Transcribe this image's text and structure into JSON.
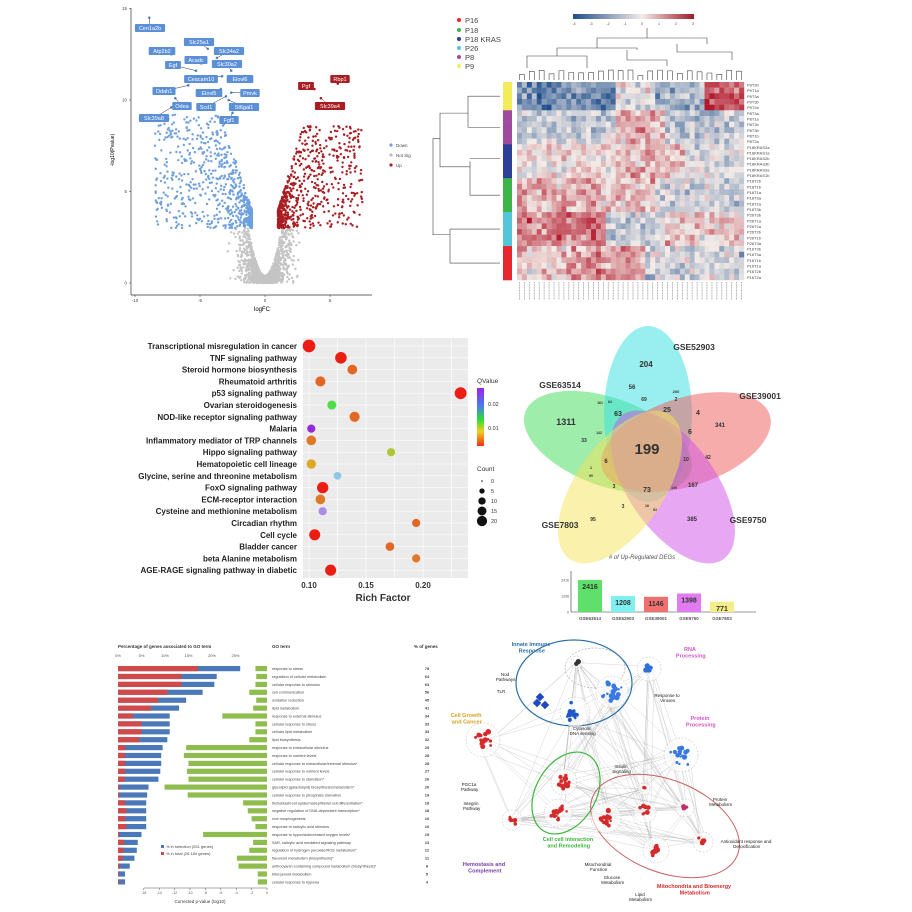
{
  "chart_data": [
    {
      "type": "scatter",
      "subtype": "volcano",
      "xlabel": "logFC",
      "ylabel": "-log10(Pvalue)",
      "xlim": [
        -10,
        8
      ],
      "ylim": [
        0,
        15
      ],
      "xticks": [
        "-10",
        "-5",
        "0",
        "5"
      ],
      "yticks": [
        "0",
        "5",
        "10",
        "15"
      ],
      "legend": [
        {
          "name": "Down",
          "color": "#6fa0dc"
        },
        {
          "name": "Not Sig",
          "color": "#bdbdbd"
        },
        {
          "name": "Up",
          "color": "#b22222"
        }
      ],
      "legend_position": "right",
      "labeled_genes": [
        {
          "name": "Cen1a2b",
          "x": -8.9,
          "y": 14.5,
          "group": "Down"
        },
        {
          "name": "Slc25a1",
          "x": -4.4,
          "y": 12.8,
          "group": "Down"
        },
        {
          "name": "Atp2b2",
          "x": -7.2,
          "y": 12.5,
          "group": "Down"
        },
        {
          "name": "Slc34a2",
          "x": -3.7,
          "y": 12.3,
          "group": "Down"
        },
        {
          "name": "Acadc",
          "x": -4.9,
          "y": 12.0,
          "group": "Down"
        },
        {
          "name": "Egf",
          "x": -5.3,
          "y": 11.6,
          "group": "Down"
        },
        {
          "name": "Slc30a2",
          "x": -2.6,
          "y": 11.6,
          "group": "Down"
        },
        {
          "name": "Ceacam10",
          "x": -3.3,
          "y": 11.3,
          "group": "Down"
        },
        {
          "name": "Elovl6",
          "x": -2.4,
          "y": 11.1,
          "group": "Down"
        },
        {
          "name": "Odah1",
          "x": -5.9,
          "y": 10.8,
          "group": "Down"
        },
        {
          "name": "Elovl5",
          "x": -3.4,
          "y": 10.6,
          "group": "Down"
        },
        {
          "name": "Pmvk",
          "x": -2.6,
          "y": 10.4,
          "group": "Down"
        },
        {
          "name": "Odea",
          "x": -6.9,
          "y": 10.1,
          "group": "Down"
        },
        {
          "name": "Scd1",
          "x": -3.0,
          "y": 10.2,
          "group": "Down"
        },
        {
          "name": "St6gal1",
          "x": -2.8,
          "y": 10.0,
          "group": "Down"
        },
        {
          "name": "Slc39a8",
          "x": -7.2,
          "y": 9.6,
          "group": "Down"
        },
        {
          "name": "Fgf1",
          "x": -2.5,
          "y": 9.3,
          "group": "Down"
        },
        {
          "name": "Pgf",
          "x": 3.8,
          "y": 10.6,
          "group": "Up"
        },
        {
          "name": "Rbp1",
          "x": 5.6,
          "y": 10.9,
          "group": "Up"
        },
        {
          "name": "Slc39a4",
          "x": 4.3,
          "y": 10.1,
          "group": "Up"
        }
      ]
    },
    {
      "type": "heatmap",
      "color_scale": {
        "min": -4,
        "max": 3,
        "ticks": [
          "-4",
          "-3",
          "-2",
          "-1",
          "0",
          "1",
          "2",
          "3"
        ],
        "low": "#1f4e8c",
        "mid": "#f3ece8",
        "high": "#b2182b"
      },
      "legend": [
        {
          "name": "P16",
          "color": "#e8262d"
        },
        {
          "name": "P18",
          "color": "#3db54a"
        },
        {
          "name": "P18 KRAS",
          "color": "#2e3f97"
        },
        {
          "name": "P26",
          "color": "#55c6d8"
        },
        {
          "name": "P8",
          "color": "#a04a9e"
        },
        {
          "name": "P9",
          "color": "#f3ec5a"
        }
      ],
      "legend_position": "top-left",
      "row_groups": [
        "P9",
        "P9",
        "P9",
        "P9",
        "P9",
        "P8",
        "P8",
        "P8",
        "P8",
        "P8",
        "P8",
        "P18 KRAS",
        "P18 KRAS",
        "P18 KRAS",
        "P18 KRAS",
        "P18 KRAS",
        "P18 KRAS",
        "P18",
        "P18",
        "P18",
        "P18",
        "P18",
        "P18",
        "P26",
        "P26",
        "P26",
        "P26",
        "P26",
        "P26",
        "P16",
        "P16",
        "P16",
        "P16",
        "P16",
        "P16"
      ],
      "row_labels": [
        "P9T2b",
        "P9T1a",
        "P9T3a",
        "P9T3b",
        "P9T2a",
        "P8T3a",
        "P8T1a",
        "P8T2b",
        "P8T3b",
        "P8T1b",
        "P8T2a",
        "P18KRAS2a",
        "P18KRAS1a",
        "P18KRAS2b",
        "P18KRAS3b",
        "P18KRAS3a",
        "P18KRAS1b",
        "P18T2b",
        "P18T1b",
        "P18T1a",
        "P18T3a",
        "P18T2a",
        "P18T3b",
        "P26T3b",
        "P26T1a",
        "P26T2a",
        "P26T2b",
        "P26T1b",
        "P26T3a",
        "P16T3b",
        "P16T3a",
        "P16T1b",
        "P16T1a",
        "P16T2b",
        "P16T2a"
      ]
    },
    {
      "type": "scatter",
      "subtype": "bubble",
      "xlabel": "Rich  Factor",
      "xlim": [
        0.095,
        0.237
      ],
      "xticks": [
        "0.10",
        "0.15",
        "0.20"
      ],
      "grid": true,
      "legend_position": "right",
      "color_legend": {
        "title": "QValue",
        "ticks": [
          "0.02",
          "0.01"
        ]
      },
      "size_legend": {
        "title": "Count",
        "ticks": [
          "0",
          "5",
          "10",
          "15",
          "20"
        ]
      },
      "points": [
        {
          "term": "Transcriptional misregulation in cancer",
          "rich": 0.1,
          "qvalue": 0.002,
          "count": 20
        },
        {
          "term": "TNF signaling pathway",
          "rich": 0.128,
          "qvalue": 0.003,
          "count": 16
        },
        {
          "term": "Steroid hormone biosynthesis",
          "rich": 0.138,
          "qvalue": 0.007,
          "count": 10
        },
        {
          "term": "Rheumatoid arthritis",
          "rich": 0.11,
          "qvalue": 0.007,
          "count": 11
        },
        {
          "term": "p53 signaling pathway",
          "rich": 0.233,
          "qvalue": 0.002,
          "count": 17
        },
        {
          "term": "Ovarian steroidogenesis",
          "rich": 0.12,
          "qvalue": 0.014,
          "count": 8
        },
        {
          "term": "NOD-like receptor signaling pathway",
          "rich": 0.14,
          "qvalue": 0.007,
          "count": 11
        },
        {
          "term": "Malaria",
          "rich": 0.102,
          "qvalue": 0.026,
          "count": 6
        },
        {
          "term": "Inflammatory mediator of TRP channels",
          "rich": 0.102,
          "qvalue": 0.008,
          "count": 10
        },
        {
          "term": "Hippo signaling pathway",
          "rich": 0.172,
          "qvalue": 0.012,
          "count": 6
        },
        {
          "term": "Hematopoietic cell lineage",
          "rich": 0.102,
          "qvalue": 0.01,
          "count": 9
        },
        {
          "term": "Glycine, serine and threonine metabolism",
          "rich": 0.125,
          "qvalue": 0.018,
          "count": 5
        },
        {
          "term": "FoxO signaling pathway",
          "rich": 0.112,
          "qvalue": 0.003,
          "count": 15
        },
        {
          "term": "ECM-receptor interaction",
          "rich": 0.11,
          "qvalue": 0.008,
          "count": 10
        },
        {
          "term": "Cysteine and methionine metabolism",
          "rich": 0.112,
          "qvalue": 0.022,
          "count": 6
        },
        {
          "term": "Circadian rhythm",
          "rich": 0.194,
          "qvalue": 0.007,
          "count": 6
        },
        {
          "term": "Cell cycle",
          "rich": 0.105,
          "qvalue": 0.003,
          "count": 14
        },
        {
          "term": "Bladder cancer",
          "rich": 0.171,
          "qvalue": 0.007,
          "count": 7
        },
        {
          "term": "beta Alanine metabolism",
          "rich": 0.194,
          "qvalue": 0.008,
          "count": 6
        },
        {
          "term": "AGE-RAGE signaling pathway in diabetic",
          "rich": 0.119,
          "qvalue": 0.003,
          "count": 14
        }
      ]
    },
    {
      "type": "venn",
      "sets": [
        {
          "name": "GSE63514",
          "color": "#3fdc55"
        },
        {
          "name": "GSE52903",
          "color": "#33e0e0"
        },
        {
          "name": "GSE39001",
          "color": "#f05a5a"
        },
        {
          "name": "GSE9750",
          "color": "#d050e8"
        },
        {
          "name": "GSE7803",
          "color": "#f5e35a"
        }
      ],
      "regions": [
        "204",
        "1311",
        "56",
        "69",
        "161",
        "64",
        "260",
        "2",
        "63",
        "25",
        "4",
        "341",
        "142",
        "33",
        "6",
        "199",
        "10",
        "42",
        "6",
        "1",
        "90",
        "3",
        "73",
        "149",
        "167",
        "3",
        "16",
        "63",
        "95",
        "385"
      ]
    },
    {
      "type": "bar",
      "title": "# of Up-Regulated DEGs",
      "categories": [
        "GSE63514",
        "GSE52903",
        "GSE39001",
        "GSE9750",
        "GSE7803"
      ],
      "values": [
        2416,
        1208,
        1146,
        1398,
        771
      ],
      "colors": [
        "#5fe06a",
        "#7ff0f0",
        "#f07070",
        "#e07cf0",
        "#f5ec8a"
      ],
      "yticks": [
        "2416",
        "1208",
        "0"
      ],
      "ylim": [
        0,
        2600
      ]
    },
    {
      "type": "bar",
      "subtype": "horizontal-diverging",
      "top_axis_label": "Percentage of genes associated to GO term",
      "top_ticks": [
        "0%",
        "5%",
        "10%",
        "15%",
        "20%",
        "25%"
      ],
      "bottom_axis_label": "Corrected p-value (log10)",
      "bottom_ticks": [
        "-16",
        "-14",
        "-12",
        "-10",
        "-8",
        "-6",
        "-4",
        "-2",
        "0"
      ],
      "term_header": "GO term",
      "count_header": "% of genes",
      "series": [
        {
          "name": "% in selection (251 genes)",
          "color": "#4a78b8"
        },
        {
          "name": "% in total (26,184 genes)",
          "color": "#d04a4a"
        },
        {
          "color": "#8fbc4e"
        }
      ],
      "rows": [
        {
          "term": "response to stress",
          "n": "78",
          "selection": 26,
          "total": 17,
          "log10p": -1.5
        },
        {
          "term": "regulation of cellular metabolism",
          "n": "64",
          "selection": 21,
          "total": 13.5,
          "log10p": -1.4
        },
        {
          "term": "cellular response to stimulus",
          "n": "63",
          "selection": 20.5,
          "total": 13.5,
          "log10p": -1.5
        },
        {
          "term": "cell communication",
          "n": "56",
          "selection": 18,
          "total": 10.5,
          "log10p": -2.3
        },
        {
          "term": "oxidation reduction",
          "n": "45",
          "selection": 14.5,
          "total": 8.5,
          "log10p": -1.4
        },
        {
          "term": "lipid metabolism",
          "n": "41",
          "selection": 13,
          "total": 7,
          "log10p": -1.8
        },
        {
          "term": "response to external stimulus",
          "n": "34",
          "selection": 11,
          "total": 3.2,
          "log10p": -5.8
        },
        {
          "term": "cellular response to stress",
          "n": "33",
          "selection": 11,
          "total": 5,
          "log10p": -1.5
        },
        {
          "term": "cellular lipid metabolism",
          "n": "33",
          "selection": 11,
          "total": 5,
          "log10p": -1.5
        },
        {
          "term": "lipid biosynthesis",
          "n": "32",
          "selection": 10.5,
          "total": 4.5,
          "log10p": -2.3
        },
        {
          "term": "response to extracellular stimulus",
          "n": "29",
          "selection": 9.5,
          "total": 1.5,
          "log10p": -10.5
        },
        {
          "term": "response to nutrient levels",
          "n": "28",
          "selection": 9.2,
          "total": 1.5,
          "log10p": -10.8
        },
        {
          "term": "cellular response to extracellular/external stimulus*",
          "n": "28",
          "selection": 9.2,
          "total": 1.5,
          "log10p": -10.2
        },
        {
          "term": "cellular response to nutrient levels",
          "n": "27",
          "selection": 9,
          "total": 1.5,
          "log10p": -10.4
        },
        {
          "term": "cellular response to starvation*",
          "n": "26",
          "selection": 8.6,
          "total": 1.4,
          "log10p": -10.2
        },
        {
          "term": "glycolipid (galactolipid) biosynthesis/metabolism*",
          "n": "20",
          "selection": 6.5,
          "total": 0.3,
          "log10p": -13.3
        },
        {
          "term": "cellular response to phosphate starvation",
          "n": "19",
          "selection": 6.2,
          "total": 0.3,
          "log10p": -10.3
        },
        {
          "term": "trichoblast/root epidermal/epithelial cell differentiation*",
          "n": "18",
          "selection": 6,
          "total": 1.5,
          "log10p": -3.1
        },
        {
          "term": "negative regulation of DNA-dependent transcription*",
          "n": "18",
          "selection": 6,
          "total": 1.8,
          "log10p": -2.5
        },
        {
          "term": "root morphogenesis",
          "n": "16",
          "selection": 6,
          "total": 1.5,
          "log10p": -2.0
        },
        {
          "term": "response to salicylic acid stimulus",
          "n": "16",
          "selection": 6,
          "total": 1.8,
          "log10p": -1.5
        },
        {
          "term": "response to hypoxia/decreased oxygen levels*",
          "n": "15",
          "selection": 5,
          "total": 0.3,
          "log10p": -8.3
        },
        {
          "term": "SAR, salicylic acid mediated signaling pathway",
          "n": "13",
          "selection": 4.2,
          "total": 1.3,
          "log10p": -1.8
        },
        {
          "term": "regulation of hydrogen peroxide/ROS metabolism*",
          "n": "12",
          "selection": 4,
          "total": 1.2,
          "log10p": -2.3
        },
        {
          "term": "flavonoid metabolism (biosynthesis)*",
          "n": "11",
          "selection": 3.5,
          "total": 1.0,
          "log10p": -3.9
        },
        {
          "term": "anthocyanin-containing compound metabolism (biosynthesis)*",
          "n": "8",
          "selection": 2.5,
          "total": 0.3,
          "log10p": -3.7
        },
        {
          "term": "triterpenoid metabolism",
          "n": "5",
          "selection": 1.5,
          "total": 0.2,
          "log10p": -1.2
        },
        {
          "term": "cellular response to hypoxia",
          "n": "4",
          "selection": 1.5,
          "total": 0.2,
          "log10p": -1.2
        }
      ]
    }
  ],
  "network": {
    "clusters": [
      {
        "label": "Innate Immune Response",
        "color": "#2d6fa8"
      },
      {
        "label": "RNA Processing",
        "color": "#d055c0"
      },
      {
        "label": "Nod Pathways",
        "color": "#222222"
      },
      {
        "label": "TLR",
        "color": "#222222"
      },
      {
        "label": "Response to Viruses",
        "color": "#222222"
      },
      {
        "label": "Cytosolic DNA sensing",
        "color": "#222222"
      },
      {
        "label": "Cell Growth and Cancer",
        "color": "#d8a21c"
      },
      {
        "label": "Protein Processing",
        "color": "#d055c0"
      },
      {
        "label": "Insulin Signaling",
        "color": "#222222"
      },
      {
        "label": "PGC1a Pathway",
        "color": "#222222"
      },
      {
        "label": "Integrin Pathway",
        "color": "#222222"
      },
      {
        "label": "Protein Metabolism",
        "color": "#222222"
      },
      {
        "label": "Antioxidant response and Detoxification",
        "color": "#222222"
      },
      {
        "label": "Cell cell interaction and Remodeling",
        "color": "#3cb43c"
      },
      {
        "label": "Hemostasis and Complement",
        "color": "#7a3aa8"
      },
      {
        "label": "Mitochondrial Function",
        "color": "#222222"
      },
      {
        "label": "Glucose Metabolism",
        "color": "#222222"
      },
      {
        "label": "Lipid Metabolism",
        "color": "#222222"
      },
      {
        "label": "Mitochondria and Bioenergy Metabolism",
        "color": "#d42a2a"
      }
    ]
  }
}
